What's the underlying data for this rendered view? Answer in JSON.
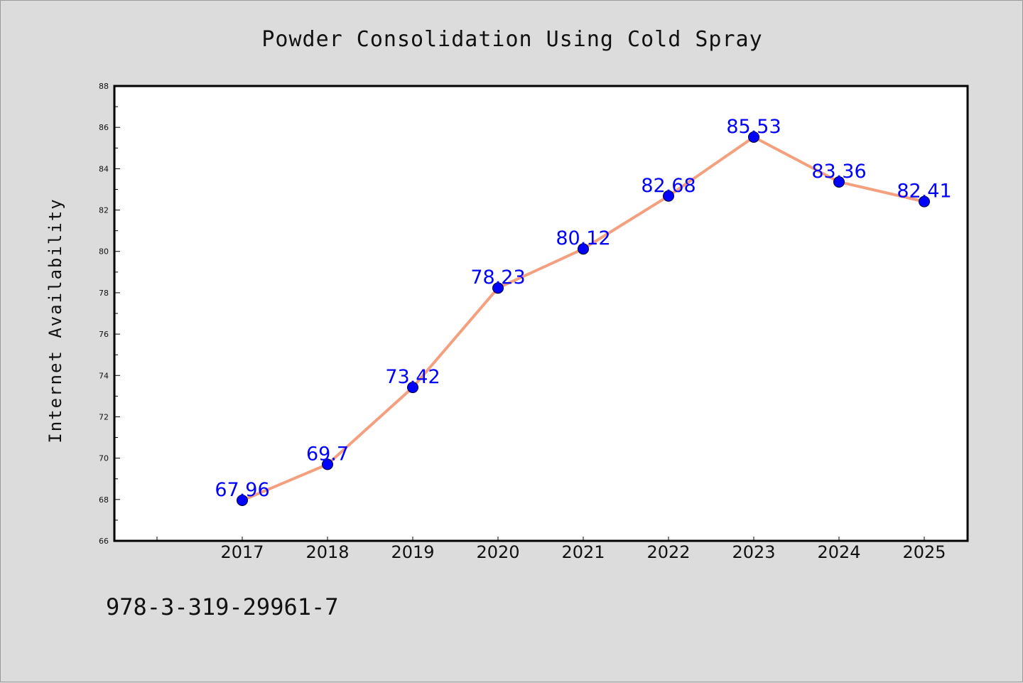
{
  "chart_data": {
    "type": "line",
    "title": "Powder Consolidation Using Cold Spray",
    "xlabel": "",
    "ylabel": "Internet Availability",
    "categories": [
      "2017",
      "2018",
      "2019",
      "2020",
      "2021",
      "2022",
      "2023",
      "2024",
      "2025"
    ],
    "series": [
      {
        "values": [
          67.96,
          69.7,
          73.42,
          78.23,
          80.12,
          82.68,
          85.53,
          83.36,
          82.41
        ]
      }
    ],
    "data_labels": [
      "67.96",
      "69.7",
      "73.42",
      "78.23",
      "80.12",
      "82.68",
      "85.53",
      "83.36",
      "82.41"
    ],
    "ylim": [
      66,
      88
    ],
    "yticks": [
      "66",
      "68",
      "70",
      "72",
      "74",
      "76",
      "78",
      "80",
      "82",
      "84",
      "86",
      "88"
    ],
    "grid": false,
    "legend": "none",
    "line_color": "#f4a07f",
    "marker_color": "#0000ff",
    "label_color": "#0000ff"
  },
  "footer": {
    "isbn": "978-3-319-29961-7"
  }
}
